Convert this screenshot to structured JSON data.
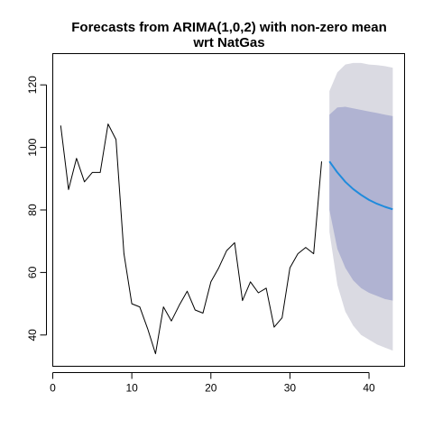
{
  "chart_data": {
    "type": "line",
    "title": "Forecasts from ARIMA(1,0,2) with non-zero mean",
    "subtitle": "wrt  NatGas",
    "xlabel": "",
    "ylabel": "",
    "xlim": [
      0,
      44.5
    ],
    "ylim": [
      30,
      130
    ],
    "x_ticks": [
      0,
      10,
      20,
      30,
      40
    ],
    "y_ticks": [
      40,
      60,
      80,
      100,
      120
    ],
    "grid": false,
    "legend": "none",
    "colors": {
      "observed": "#000000",
      "forecast_mean": "#1f8bdc",
      "band_80": "#b0b3d2",
      "band_95": "#dadae2",
      "axis": "#000000"
    },
    "observed": {
      "x": [
        1,
        2,
        3,
        4,
        5,
        6,
        7,
        8,
        9,
        10,
        11,
        12,
        13,
        14,
        15,
        16,
        17,
        18,
        19,
        20,
        21,
        22,
        23,
        24,
        25,
        26,
        27,
        28,
        29,
        30,
        31,
        32,
        33,
        34
      ],
      "y": [
        107,
        86.5,
        96.5,
        89,
        92,
        92,
        107.5,
        102.5,
        66,
        50,
        49,
        42,
        34,
        49,
        44.5,
        49.5,
        54,
        48,
        47,
        57,
        61.5,
        67,
        69.5,
        51,
        57,
        53.5,
        55,
        42.5,
        45.5,
        61.5,
        66,
        68,
        66,
        95.5
      ]
    },
    "forecast": {
      "x": [
        35,
        36,
        37,
        38,
        39,
        40,
        41,
        42,
        43
      ],
      "mean": [
        95.5,
        92,
        89,
        86.7,
        84.8,
        83.2,
        82,
        81,
        80.2
      ],
      "lo80": [
        80,
        67.5,
        61.5,
        57.5,
        55,
        53.5,
        52.5,
        51.5,
        51
      ],
      "hi80": [
        110.5,
        112.8,
        113,
        112.5,
        112,
        111.5,
        111,
        110.5,
        110
      ],
      "lo95": [
        73,
        56,
        47.5,
        43,
        40,
        38.5,
        37,
        36,
        35
      ],
      "hi95": [
        118,
        124,
        126.5,
        127,
        127,
        126.5,
        126.3,
        126,
        125.5
      ]
    }
  }
}
